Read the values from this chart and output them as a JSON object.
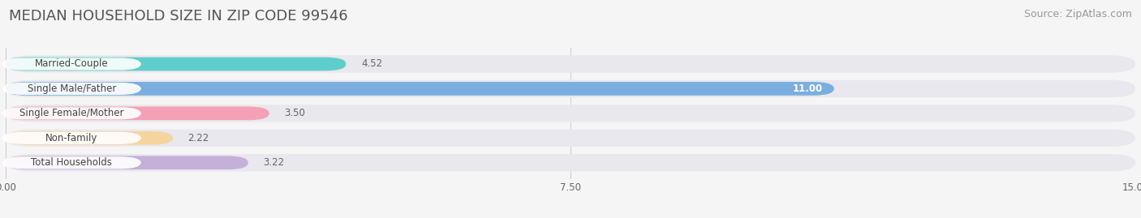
{
  "title": "MEDIAN HOUSEHOLD SIZE IN ZIP CODE 99546",
  "source": "Source: ZipAtlas.com",
  "categories": [
    "Married-Couple",
    "Single Male/Father",
    "Single Female/Mother",
    "Non-family",
    "Total Households"
  ],
  "values": [
    4.52,
    11.0,
    3.5,
    2.22,
    3.22
  ],
  "bar_colors": [
    "#5ececa",
    "#7aaede",
    "#f4a0b5",
    "#f5d4a0",
    "#c4b0d8"
  ],
  "value_labels": [
    "4.52",
    "11.00",
    "3.50",
    "2.22",
    "3.22"
  ],
  "value_label_inside": [
    false,
    true,
    false,
    false,
    false
  ],
  "xlim": [
    0,
    15.0
  ],
  "xticks": [
    0.0,
    7.5,
    15.0
  ],
  "xtick_labels": [
    "0.00",
    "7.50",
    "15.00"
  ],
  "title_fontsize": 13,
  "source_fontsize": 9,
  "label_fontsize": 8.5,
  "value_fontsize": 8.5,
  "background_color": "#f5f5f5",
  "bar_background_color": "#e8e8ee"
}
